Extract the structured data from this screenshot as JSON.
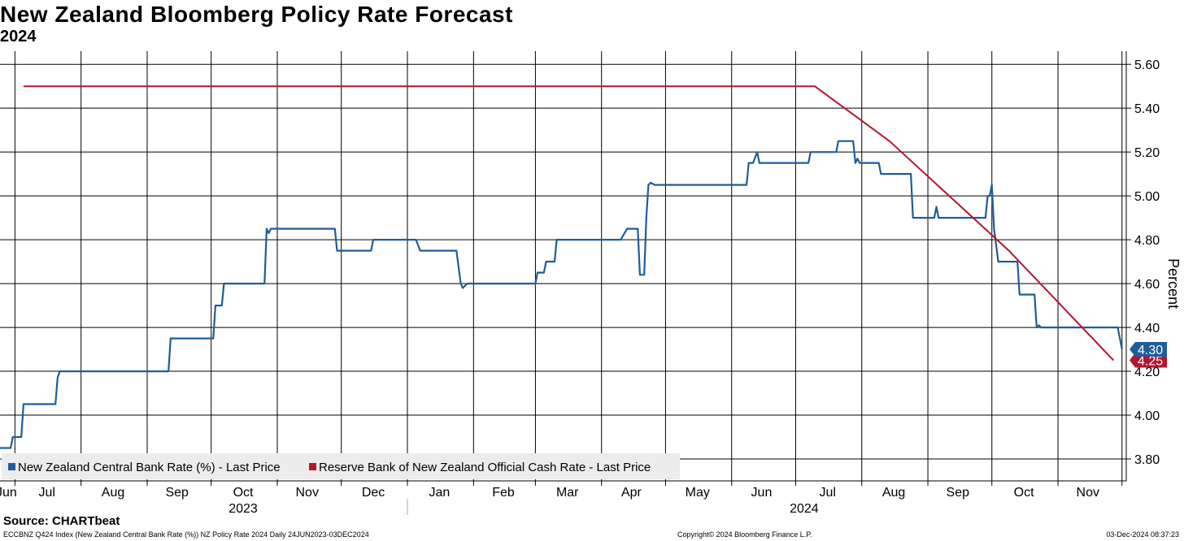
{
  "header": {
    "title": "New Zealand Bloomberg Policy Rate Forecast",
    "subtitle": "2024"
  },
  "footer": {
    "source": "Source: CHARTbeat",
    "left": "ECCBNZ Q424 Index (New Zealand Central Bank Rate (%)) NZ Policy Rate 2024  Daily 24JUN2023-03DEC2024",
    "middle": "Copyright© 2024 Bloomberg Finance L.P.",
    "right": "03-Dec-2024 08:37:23"
  },
  "chart_data": {
    "type": "line",
    "title": "New Zealand Bloomberg Policy Rate Forecast",
    "subtitle": "2024",
    "ylabel": "Percent",
    "y_axis_side": "right",
    "ylim": [
      3.7,
      5.66
    ],
    "yticks": [
      "5.60",
      "5.40",
      "5.20",
      "5.00",
      "4.80",
      "4.60",
      "4.40",
      "4.20",
      "4.00",
      "3.80"
    ],
    "xlim": [
      "2023-06-24",
      "2024-12-03"
    ],
    "x_ticks": [
      {
        "label": "Jun",
        "mid": "2023-06-27"
      },
      {
        "label": "Jul",
        "mid": "2023-07-16"
      },
      {
        "label": "Aug",
        "mid": "2023-08-16"
      },
      {
        "label": "Sep",
        "mid": "2023-09-15"
      },
      {
        "label": "Oct",
        "mid": "2023-10-16"
      },
      {
        "label": "Nov",
        "mid": "2023-11-15"
      },
      {
        "label": "Dec",
        "mid": "2023-12-16"
      },
      {
        "label": "Jan",
        "mid": "2024-01-16"
      },
      {
        "label": "Feb",
        "mid": "2024-02-15"
      },
      {
        "label": "Mar",
        "mid": "2024-03-16"
      },
      {
        "label": "Apr",
        "mid": "2024-04-15"
      },
      {
        "label": "May",
        "mid": "2024-05-16"
      },
      {
        "label": "Jun",
        "mid": "2024-06-15"
      },
      {
        "label": "Jul",
        "mid": "2024-07-16"
      },
      {
        "label": "Aug",
        "mid": "2024-08-16"
      },
      {
        "label": "Sep",
        "mid": "2024-09-15"
      },
      {
        "label": "Oct",
        "mid": "2024-10-16"
      },
      {
        "label": "Nov",
        "mid": "2024-11-15"
      }
    ],
    "year_labels": [
      {
        "label": "2023",
        "mid": "2023-10-16"
      },
      {
        "label": "2024",
        "mid": "2024-07-05"
      }
    ],
    "gridlines_x": [
      "2023-07-01",
      "2023-08-01",
      "2023-09-01",
      "2023-10-01",
      "2023-11-01",
      "2023-12-01",
      "2024-01-01",
      "2024-02-01",
      "2024-03-01",
      "2024-04-01",
      "2024-05-01",
      "2024-06-01",
      "2024-07-01",
      "2024-08-01",
      "2024-09-01",
      "2024-10-01",
      "2024-11-01",
      "2024-12-01"
    ],
    "year_divider": "2024-01-01",
    "grid": true,
    "legend_position": "bottom-left",
    "series": [
      {
        "name": "New Zealand Central Bank Rate (%) - Last Price",
        "color": "#1f5d99",
        "last_value": "4.30",
        "points": [
          [
            "2023-06-24",
            3.85
          ],
          [
            "2023-06-29",
            3.85
          ],
          [
            "2023-06-30",
            3.9
          ],
          [
            "2023-07-04",
            3.9
          ],
          [
            "2023-07-05",
            4.05
          ],
          [
            "2023-07-20",
            4.05
          ],
          [
            "2023-07-21",
            4.17
          ],
          [
            "2023-07-22",
            4.2
          ],
          [
            "2023-09-11",
            4.2
          ],
          [
            "2023-09-12",
            4.35
          ],
          [
            "2023-10-02",
            4.35
          ],
          [
            "2023-10-03",
            4.5
          ],
          [
            "2023-10-06",
            4.5
          ],
          [
            "2023-10-07",
            4.6
          ],
          [
            "2023-10-26",
            4.6
          ],
          [
            "2023-10-27",
            4.85
          ],
          [
            "2023-10-28",
            4.83
          ],
          [
            "2023-10-29",
            4.85
          ],
          [
            "2023-11-28",
            4.85
          ],
          [
            "2023-11-29",
            4.75
          ],
          [
            "2023-12-15",
            4.75
          ],
          [
            "2023-12-16",
            4.8
          ],
          [
            "2024-01-05",
            4.8
          ],
          [
            "2024-01-07",
            4.75
          ],
          [
            "2024-01-24",
            4.75
          ],
          [
            "2024-01-26",
            4.6
          ],
          [
            "2024-01-27",
            4.58
          ],
          [
            "2024-01-29",
            4.6
          ],
          [
            "2024-03-01",
            4.6
          ],
          [
            "2024-03-02",
            4.65
          ],
          [
            "2024-03-05",
            4.65
          ],
          [
            "2024-03-06",
            4.7
          ],
          [
            "2024-03-10",
            4.7
          ],
          [
            "2024-03-11",
            4.8
          ],
          [
            "2024-04-10",
            4.8
          ],
          [
            "2024-04-13",
            4.85
          ],
          [
            "2024-04-18",
            4.85
          ],
          [
            "2024-04-19",
            4.64
          ],
          [
            "2024-04-21",
            4.64
          ],
          [
            "2024-04-22",
            4.9
          ],
          [
            "2024-04-23",
            5.05
          ],
          [
            "2024-04-24",
            5.06
          ],
          [
            "2024-04-26",
            5.05
          ],
          [
            "2024-06-08",
            5.05
          ],
          [
            "2024-06-09",
            5.15
          ],
          [
            "2024-06-11",
            5.15
          ],
          [
            "2024-06-13",
            5.2
          ],
          [
            "2024-06-14",
            5.15
          ],
          [
            "2024-07-07",
            5.15
          ],
          [
            "2024-07-08",
            5.2
          ],
          [
            "2024-07-20",
            5.2
          ],
          [
            "2024-07-21",
            5.25
          ],
          [
            "2024-07-28",
            5.25
          ],
          [
            "2024-07-29",
            5.15
          ],
          [
            "2024-07-30",
            5.17
          ],
          [
            "2024-07-31",
            5.15
          ],
          [
            "2024-08-09",
            5.15
          ],
          [
            "2024-08-10",
            5.1
          ],
          [
            "2024-08-24",
            5.1
          ],
          [
            "2024-08-25",
            4.9
          ],
          [
            "2024-09-04",
            4.9
          ],
          [
            "2024-09-05",
            4.95
          ],
          [
            "2024-09-06",
            4.9
          ],
          [
            "2024-09-28",
            4.9
          ],
          [
            "2024-09-29",
            5.0
          ],
          [
            "2024-09-30",
            5.0
          ],
          [
            "2024-10-01",
            5.05
          ],
          [
            "2024-10-02",
            4.85
          ],
          [
            "2024-10-04",
            4.7
          ],
          [
            "2024-10-13",
            4.7
          ],
          [
            "2024-10-14",
            4.55
          ],
          [
            "2024-10-21",
            4.55
          ],
          [
            "2024-10-22",
            4.4
          ],
          [
            "2024-10-23",
            4.41
          ],
          [
            "2024-10-24",
            4.4
          ],
          [
            "2024-11-29",
            4.4
          ],
          [
            "2024-12-01",
            4.3
          ]
        ]
      },
      {
        "name": "Reserve Bank of New Zealand Official Cash Rate - Last Price",
        "color": "#b5152b",
        "last_value": "4.25",
        "points": [
          [
            "2023-07-05",
            5.5
          ],
          [
            "2024-07-10",
            5.5
          ],
          [
            "2024-08-14",
            5.25
          ],
          [
            "2024-10-09",
            4.75
          ],
          [
            "2024-11-27",
            4.25
          ]
        ]
      }
    ]
  }
}
